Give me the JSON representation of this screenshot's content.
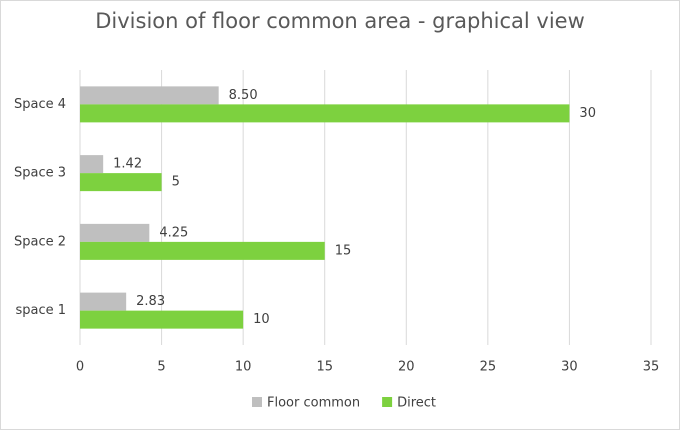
{
  "chart_data": {
    "type": "hbar",
    "title": "Division of floor common area - graphical view",
    "categories": [
      "space 1",
      "Space 2",
      "Space 3",
      "Space 4"
    ],
    "series": [
      {
        "name": "Floor common",
        "color": "#bfbfbf",
        "values": [
          2.83,
          4.25,
          1.42,
          8.5
        ],
        "value_labels": [
          "2.83",
          "4.25",
          "1.42",
          "8.50"
        ]
      },
      {
        "name": "Direct",
        "color": "#7dd13f",
        "values": [
          10,
          15,
          5,
          30
        ]
      }
    ],
    "xlim": [
      0,
      35
    ],
    "xticks": [
      0,
      5,
      10,
      15,
      20,
      25,
      30,
      35
    ],
    "grid": true,
    "legend": "bottom"
  }
}
